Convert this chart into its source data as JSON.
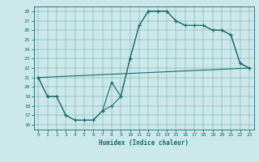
{
  "xlabel": "Humidex (Indice chaleur)",
  "xlim": [
    -0.5,
    23.5
  ],
  "ylim": [
    15.5,
    28.5
  ],
  "xticks": [
    0,
    1,
    2,
    3,
    4,
    5,
    6,
    7,
    8,
    9,
    10,
    11,
    12,
    13,
    14,
    15,
    16,
    17,
    18,
    19,
    20,
    21,
    22,
    23
  ],
  "yticks": [
    16,
    17,
    18,
    19,
    20,
    21,
    22,
    23,
    24,
    25,
    26,
    27,
    28
  ],
  "bg_color": "#cce8e8",
  "line_color": "#1a6b6b",
  "line1_x": [
    0,
    1,
    2,
    3,
    4,
    5,
    6,
    7,
    8,
    9,
    10,
    11,
    12,
    13,
    14,
    15,
    16,
    17,
    18,
    19,
    20,
    21,
    22,
    23
  ],
  "line1_y": [
    21,
    19,
    19,
    17,
    16.5,
    16.5,
    16.5,
    17.5,
    18.0,
    19.0,
    23,
    26.5,
    28,
    28,
    28,
    27,
    26.5,
    26.5,
    26.5,
    26,
    26,
    25.5,
    22.5,
    22
  ],
  "line2_x": [
    0,
    1,
    2,
    3,
    4,
    5,
    6,
    7,
    8,
    9,
    10,
    11,
    12,
    13,
    14,
    15,
    16,
    17,
    18,
    19,
    20,
    21,
    22,
    23
  ],
  "line2_y": [
    21,
    19,
    19,
    17,
    16.5,
    16.5,
    16.5,
    17.5,
    20.5,
    19.0,
    23,
    26.5,
    28,
    28,
    28,
    27,
    26.5,
    26.5,
    26.5,
    26,
    26,
    25.5,
    22.5,
    22
  ],
  "line3_x": [
    0,
    23
  ],
  "line3_y": [
    21,
    22
  ]
}
